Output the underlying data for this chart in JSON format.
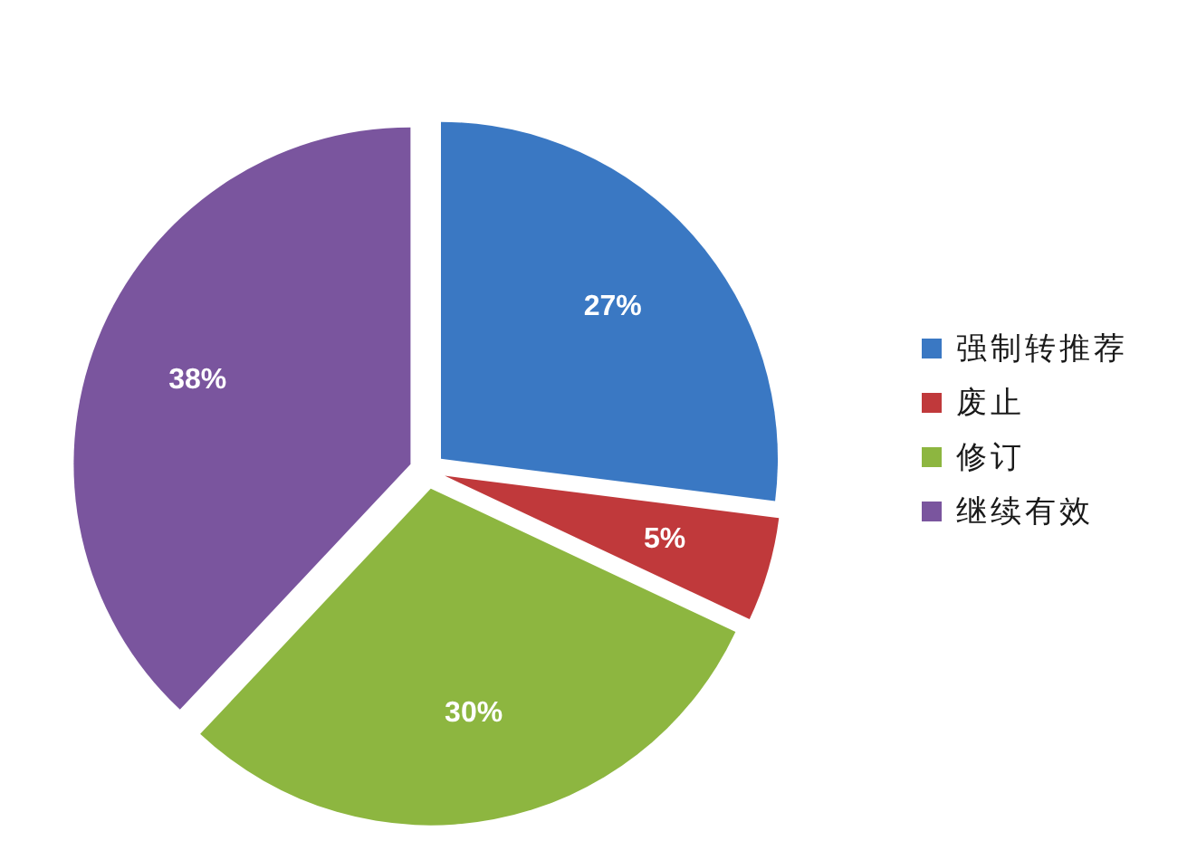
{
  "chart_data": {
    "type": "pie",
    "categories": [
      "强制转推荐",
      "废止",
      "修订",
      "继续有效"
    ],
    "values": [
      27,
      5,
      30,
      38
    ],
    "value_labels": [
      "27%",
      "5%",
      "30%",
      "38%"
    ],
    "colors": [
      "#3a78c3",
      "#c0393b",
      "#8db640",
      "#7a559e"
    ],
    "legend": "right"
  }
}
